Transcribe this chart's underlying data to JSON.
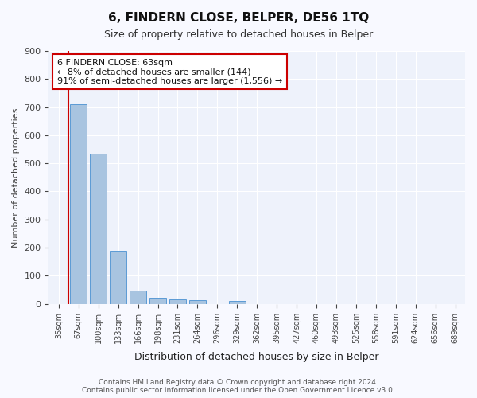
{
  "title": "6, FINDERN CLOSE, BELPER, DE56 1TQ",
  "subtitle": "Size of property relative to detached houses in Belper",
  "xlabel": "Distribution of detached houses by size in Belper",
  "ylabel": "Number of detached properties",
  "bar_color": "#a8c4e0",
  "bar_edge_color": "#5b9bd5",
  "background_color": "#eef2fb",
  "grid_color": "#ffffff",
  "categories": [
    "35sqm",
    "67sqm",
    "100sqm",
    "133sqm",
    "166sqm",
    "198sqm",
    "231sqm",
    "264sqm",
    "296sqm",
    "329sqm",
    "362sqm",
    "395sqm",
    "427sqm",
    "460sqm",
    "493sqm",
    "525sqm",
    "558sqm",
    "591sqm",
    "624sqm",
    "656sqm",
    "689sqm"
  ],
  "values": [
    0,
    710,
    535,
    190,
    47,
    20,
    15,
    13,
    0,
    10,
    0,
    0,
    0,
    0,
    0,
    0,
    0,
    0,
    0,
    0,
    0
  ],
  "ylim": [
    0,
    900
  ],
  "yticks": [
    0,
    100,
    200,
    300,
    400,
    500,
    600,
    700,
    800,
    900
  ],
  "vline_color": "#cc0000",
  "annotation_line1": "6 FINDERN CLOSE: 63sqm",
  "annotation_line2": "← 8% of detached houses are smaller (144)",
  "annotation_line3": "91% of semi-detached houses are larger (1,556) →",
  "annotation_box_color": "#ffffff",
  "annotation_box_edge": "#cc0000",
  "footer_text": "Contains HM Land Registry data © Crown copyright and database right 2024.\nContains public sector information licensed under the Open Government Licence v3.0."
}
